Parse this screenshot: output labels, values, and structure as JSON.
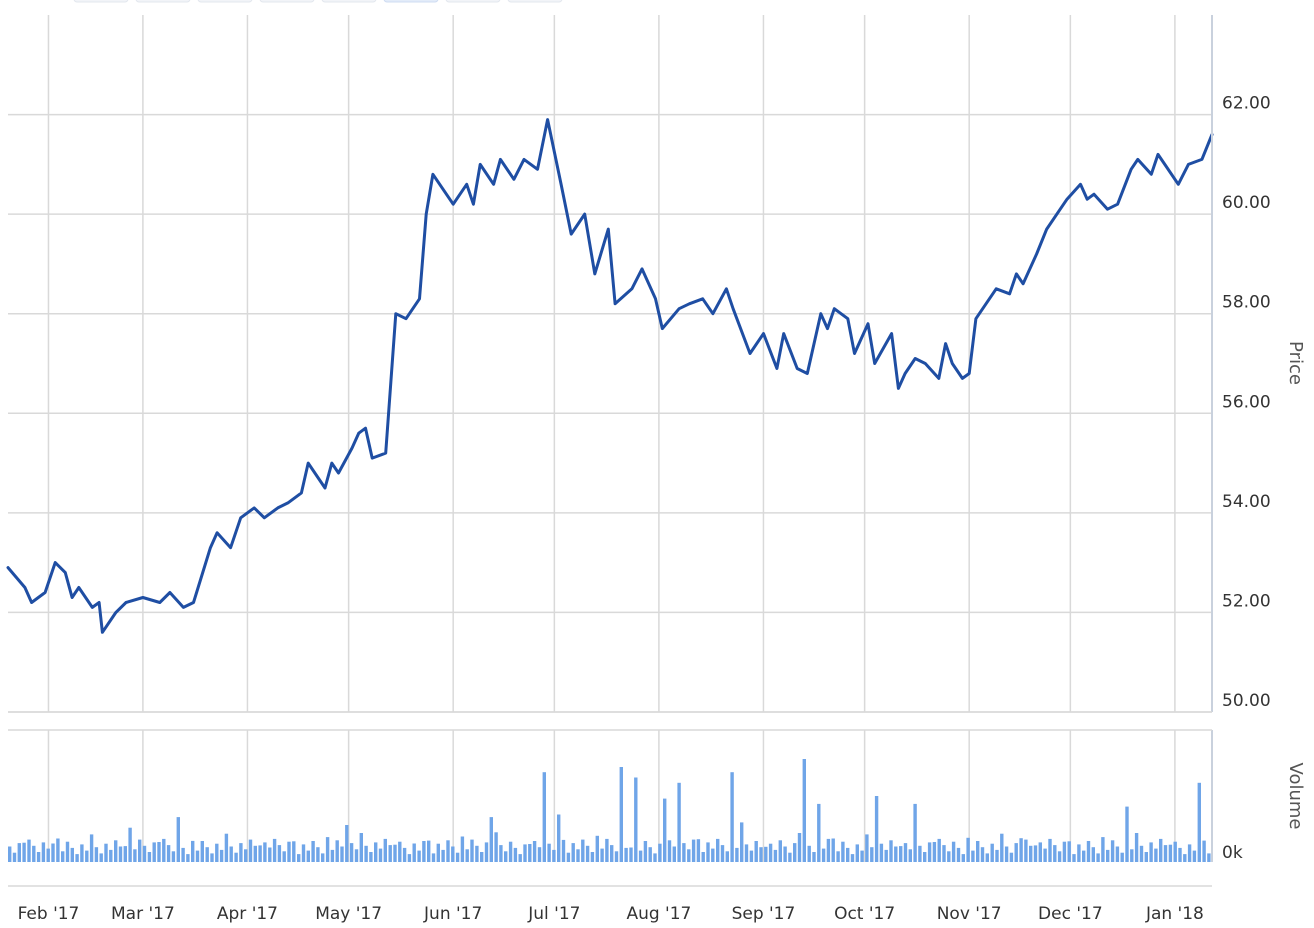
{
  "chart_data": {
    "type": "line",
    "range_selector": {
      "buttons": 8,
      "selected_index": 5
    },
    "x_ticks": [
      "Feb '17",
      "Mar '17",
      "Apr '17",
      "May '17",
      "Jun '17",
      "Jul '17",
      "Aug '17",
      "Sep '17",
      "Oct '17",
      "Nov '17",
      "Dec '17",
      "Jan '18"
    ],
    "x_range": [
      "2017-01-20",
      "2018-01-12"
    ],
    "price_axis": {
      "title": "Price",
      "range": [
        50,
        64
      ],
      "ticks": [
        "50.00",
        "52.00",
        "54.00",
        "56.00",
        "58.00",
        "60.00",
        "62.00"
      ],
      "tick_values": [
        50,
        52,
        54,
        56,
        58,
        60,
        62
      ],
      "side": "right"
    },
    "volume_axis": {
      "title": "Volume",
      "ticks": [
        "0k"
      ],
      "side": "right"
    },
    "grid": true,
    "colors": {
      "line": "#1f4ea3",
      "volume": "#6fa5e8",
      "grid": "#d9d9d9"
    },
    "series": [
      {
        "type": "line",
        "points": [
          [
            "2017-01-20",
            52.9
          ],
          [
            "2017-01-25",
            52.5
          ],
          [
            "2017-01-27",
            52.2
          ],
          [
            "2017-01-31",
            52.4
          ],
          [
            "2017-02-03",
            53.0
          ],
          [
            "2017-02-06",
            52.8
          ],
          [
            "2017-02-08",
            52.3
          ],
          [
            "2017-02-10",
            52.5
          ],
          [
            "2017-02-14",
            52.1
          ],
          [
            "2017-02-16",
            52.2
          ],
          [
            "2017-02-17",
            51.6
          ],
          [
            "2017-02-21",
            52.0
          ],
          [
            "2017-02-24",
            52.2
          ],
          [
            "2017-03-01",
            52.3
          ],
          [
            "2017-03-06",
            52.2
          ],
          [
            "2017-03-09",
            52.4
          ],
          [
            "2017-03-13",
            52.1
          ],
          [
            "2017-03-16",
            52.2
          ],
          [
            "2017-03-21",
            53.3
          ],
          [
            "2017-03-23",
            53.6
          ],
          [
            "2017-03-27",
            53.3
          ],
          [
            "2017-03-30",
            53.9
          ],
          [
            "2017-04-03",
            54.1
          ],
          [
            "2017-04-06",
            53.9
          ],
          [
            "2017-04-10",
            54.1
          ],
          [
            "2017-04-13",
            54.2
          ],
          [
            "2017-04-17",
            54.4
          ],
          [
            "2017-04-19",
            55.0
          ],
          [
            "2017-04-24",
            54.5
          ],
          [
            "2017-04-26",
            55.0
          ],
          [
            "2017-04-28",
            54.8
          ],
          [
            "2017-05-02",
            55.3
          ],
          [
            "2017-05-04",
            55.6
          ],
          [
            "2017-05-06",
            55.7
          ],
          [
            "2017-05-08",
            55.1
          ],
          [
            "2017-05-12",
            55.2
          ],
          [
            "2017-05-15",
            58.0
          ],
          [
            "2017-05-18",
            57.9
          ],
          [
            "2017-05-22",
            58.3
          ],
          [
            "2017-05-24",
            60.0
          ],
          [
            "2017-05-26",
            60.8
          ],
          [
            "2017-05-30",
            60.4
          ],
          [
            "2017-06-01",
            60.2
          ],
          [
            "2017-06-05",
            60.6
          ],
          [
            "2017-06-07",
            60.2
          ],
          [
            "2017-06-09",
            61.0
          ],
          [
            "2017-06-13",
            60.6
          ],
          [
            "2017-06-15",
            61.1
          ],
          [
            "2017-06-19",
            60.7
          ],
          [
            "2017-06-22",
            61.1
          ],
          [
            "2017-06-26",
            60.9
          ],
          [
            "2017-06-29",
            61.9
          ],
          [
            "2017-07-03",
            60.6
          ],
          [
            "2017-07-06",
            59.6
          ],
          [
            "2017-07-10",
            60.0
          ],
          [
            "2017-07-13",
            58.8
          ],
          [
            "2017-07-17",
            59.7
          ],
          [
            "2017-07-19",
            58.2
          ],
          [
            "2017-07-24",
            58.5
          ],
          [
            "2017-07-27",
            58.9
          ],
          [
            "2017-07-31",
            58.3
          ],
          [
            "2017-08-02",
            57.7
          ],
          [
            "2017-08-07",
            58.1
          ],
          [
            "2017-08-10",
            58.2
          ],
          [
            "2017-08-14",
            58.3
          ],
          [
            "2017-08-17",
            58.0
          ],
          [
            "2017-08-21",
            58.5
          ],
          [
            "2017-08-23",
            58.1
          ],
          [
            "2017-08-28",
            57.2
          ],
          [
            "2017-09-01",
            57.6
          ],
          [
            "2017-09-05",
            56.9
          ],
          [
            "2017-09-07",
            57.6
          ],
          [
            "2017-09-11",
            56.9
          ],
          [
            "2017-09-14",
            56.8
          ],
          [
            "2017-09-18",
            58.0
          ],
          [
            "2017-09-20",
            57.7
          ],
          [
            "2017-09-22",
            58.1
          ],
          [
            "2017-09-26",
            57.9
          ],
          [
            "2017-09-28",
            57.2
          ],
          [
            "2017-10-02",
            57.8
          ],
          [
            "2017-10-04",
            57.0
          ],
          [
            "2017-10-09",
            57.6
          ],
          [
            "2017-10-11",
            56.5
          ],
          [
            "2017-10-13",
            56.8
          ],
          [
            "2017-10-16",
            57.1
          ],
          [
            "2017-10-19",
            57.0
          ],
          [
            "2017-10-23",
            56.7
          ],
          [
            "2017-10-25",
            57.4
          ],
          [
            "2017-10-27",
            57.0
          ],
          [
            "2017-10-30",
            56.7
          ],
          [
            "2017-11-01",
            56.8
          ],
          [
            "2017-11-03",
            57.9
          ],
          [
            "2017-11-06",
            58.2
          ],
          [
            "2017-11-09",
            58.5
          ],
          [
            "2017-11-13",
            58.4
          ],
          [
            "2017-11-15",
            58.8
          ],
          [
            "2017-11-17",
            58.6
          ],
          [
            "2017-11-21",
            59.2
          ],
          [
            "2017-11-24",
            59.7
          ],
          [
            "2017-11-28",
            60.1
          ],
          [
            "2017-11-30",
            60.3
          ],
          [
            "2017-12-04",
            60.6
          ],
          [
            "2017-12-06",
            60.3
          ],
          [
            "2017-12-08",
            60.4
          ],
          [
            "2017-12-12",
            60.1
          ],
          [
            "2017-12-15",
            60.2
          ],
          [
            "2017-12-19",
            60.9
          ],
          [
            "2017-12-21",
            61.1
          ],
          [
            "2017-12-25",
            60.8
          ],
          [
            "2017-12-27",
            61.2
          ],
          [
            "2017-12-29",
            61.0
          ],
          [
            "2018-01-02",
            60.6
          ],
          [
            "2018-01-05",
            61.0
          ],
          [
            "2018-01-09",
            61.1
          ],
          [
            "2018-01-12",
            61.6
          ]
        ]
      }
    ]
  }
}
